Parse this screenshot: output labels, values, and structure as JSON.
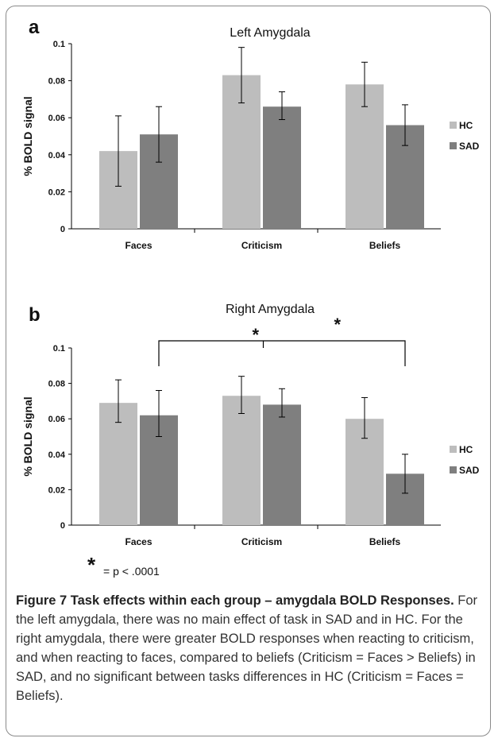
{
  "colors": {
    "hc": "#bdbdbd",
    "sad": "#7f7f7f",
    "axis": "#000000"
  },
  "chart_data": [
    {
      "panel_label": "a",
      "type": "bar",
      "title": "Left Amygdala",
      "ylabel": "% BOLD signal",
      "xlabel": "",
      "ylim": [
        0,
        0.1
      ],
      "yticks": [
        "0",
        "0.02",
        "0.04",
        "0.06",
        "0.08",
        "0.1"
      ],
      "categories": [
        "Faces",
        "Criticism",
        "Beliefs"
      ],
      "legend": [
        "HC",
        "SAD"
      ],
      "legend_position": "right",
      "series": [
        {
          "name": "HC",
          "values": [
            0.042,
            0.083,
            0.078
          ],
          "err_low": [
            0.023,
            0.068,
            0.066
          ],
          "err_high": [
            0.061,
            0.098,
            0.09
          ]
        },
        {
          "name": "SAD",
          "values": [
            0.051,
            0.066,
            0.056
          ],
          "err_low": [
            0.036,
            0.059,
            0.045
          ],
          "err_high": [
            0.066,
            0.074,
            0.067
          ]
        }
      ]
    },
    {
      "panel_label": "b",
      "type": "bar",
      "title": "Right Amygdala",
      "ylabel": "% BOLD signal",
      "xlabel": "",
      "ylim": [
        0,
        0.1
      ],
      "yticks": [
        "0",
        "0.02",
        "0.04",
        "0.06",
        "0.08",
        "0.1"
      ],
      "categories": [
        "Faces",
        "Criticism",
        "Beliefs"
      ],
      "legend": [
        "HC",
        "SAD"
      ],
      "legend_position": "right",
      "series": [
        {
          "name": "HC",
          "values": [
            0.069,
            0.073,
            0.06
          ],
          "err_low": [
            0.058,
            0.063,
            0.049
          ],
          "err_high": [
            0.082,
            0.084,
            0.072
          ]
        },
        {
          "name": "SAD",
          "values": [
            0.062,
            0.068,
            0.029
          ],
          "err_low": [
            0.05,
            0.061,
            0.018
          ],
          "err_high": [
            0.076,
            0.077,
            0.04
          ]
        }
      ],
      "significance": {
        "marker": "*",
        "note_marker": "*",
        "note_text": "= p < .0001",
        "brackets": [
          {
            "from": "Faces",
            "to": "Beliefs",
            "series": "SAD"
          },
          {
            "from": "Criticism",
            "to": "Beliefs",
            "series": "SAD"
          }
        ]
      }
    }
  ],
  "caption": {
    "title": "Figure 7 Task effects within each group – amygdala BOLD Responses.",
    "text": " For the left amygdala, there was no main effect of task in SAD and in HC. For the right amygdala, there were greater BOLD responses when reacting to criticism, and when reacting to faces, compared to beliefs (Criticism = Faces > Beliefs) in SAD, and no significant between tasks differences in HC (Criticism = Faces = Beliefs)."
  }
}
